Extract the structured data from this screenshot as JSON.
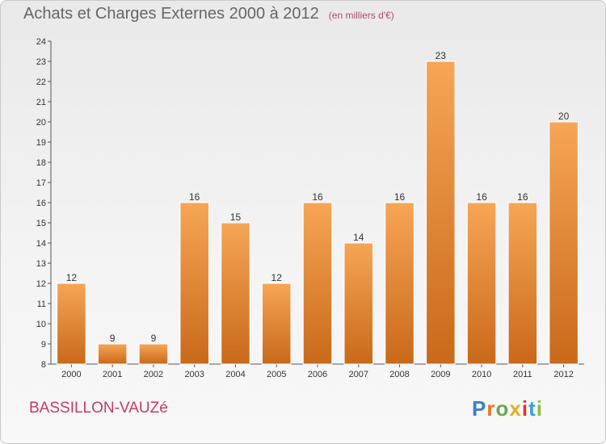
{
  "title": "Achats et Charges Externes 2000 à 2012",
  "subtitle": "(en milliers d'€)",
  "location": "BASSILLON-VAUZé",
  "logo": "Proxiti",
  "colors": {
    "bar_light": "#f6a656",
    "bar_dark": "#c9691a",
    "title": "#666666",
    "subtitle": "#b04a6a",
    "location": "#c23a6a"
  },
  "chart_data": {
    "type": "bar",
    "title": "Achats et Charges Externes 2000 à 2012",
    "subtitle": "(en milliers d'€)",
    "categories": [
      "2000",
      "2001",
      "2002",
      "2003",
      "2004",
      "2005",
      "2006",
      "2007",
      "2008",
      "2009",
      "2010",
      "2011",
      "2012"
    ],
    "values": [
      12,
      9,
      9,
      16,
      15,
      12,
      16,
      14,
      16,
      23,
      16,
      16,
      20
    ],
    "ylim": [
      8,
      24
    ],
    "yticks": [
      8,
      9,
      10,
      11,
      12,
      13,
      14,
      15,
      16,
      17,
      18,
      19,
      20,
      21,
      22,
      23,
      24
    ],
    "grid": false,
    "legend": "none"
  }
}
